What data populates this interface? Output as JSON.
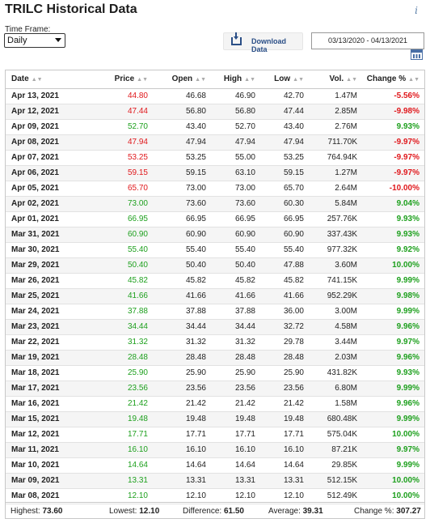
{
  "title": "TRILC Historical Data",
  "timeframe": {
    "label": "Time Frame:",
    "selected": "Daily"
  },
  "download": {
    "label": "Download Data"
  },
  "date_range": "03/13/2020 - 04/13/2021",
  "columns": [
    "Date",
    "Price",
    "Open",
    "High",
    "Low",
    "Vol.",
    "Change %"
  ],
  "colors": {
    "up": "#1ea01e",
    "down": "#e0181c",
    "accent": "#2a4e86"
  },
  "rows": [
    {
      "date": "Apr 13, 2021",
      "price": "44.80",
      "open": "46.68",
      "high": "46.90",
      "low": "42.70",
      "vol": "1.47M",
      "change": "-5.56%",
      "dir": "down"
    },
    {
      "date": "Apr 12, 2021",
      "price": "47.44",
      "open": "56.80",
      "high": "56.80",
      "low": "47.44",
      "vol": "2.85M",
      "change": "-9.98%",
      "dir": "down"
    },
    {
      "date": "Apr 09, 2021",
      "price": "52.70",
      "open": "43.40",
      "high": "52.70",
      "low": "43.40",
      "vol": "2.76M",
      "change": "9.93%",
      "dir": "up"
    },
    {
      "date": "Apr 08, 2021",
      "price": "47.94",
      "open": "47.94",
      "high": "47.94",
      "low": "47.94",
      "vol": "711.70K",
      "change": "-9.97%",
      "dir": "down"
    },
    {
      "date": "Apr 07, 2021",
      "price": "53.25",
      "open": "53.25",
      "high": "55.00",
      "low": "53.25",
      "vol": "764.94K",
      "change": "-9.97%",
      "dir": "down"
    },
    {
      "date": "Apr 06, 2021",
      "price": "59.15",
      "open": "59.15",
      "high": "63.10",
      "low": "59.15",
      "vol": "1.27M",
      "change": "-9.97%",
      "dir": "down"
    },
    {
      "date": "Apr 05, 2021",
      "price": "65.70",
      "open": "73.00",
      "high": "73.00",
      "low": "65.70",
      "vol": "2.64M",
      "change": "-10.00%",
      "dir": "down"
    },
    {
      "date": "Apr 02, 2021",
      "price": "73.00",
      "open": "73.60",
      "high": "73.60",
      "low": "60.30",
      "vol": "5.84M",
      "change": "9.04%",
      "dir": "up"
    },
    {
      "date": "Apr 01, 2021",
      "price": "66.95",
      "open": "66.95",
      "high": "66.95",
      "low": "66.95",
      "vol": "257.76K",
      "change": "9.93%",
      "dir": "up"
    },
    {
      "date": "Mar 31, 2021",
      "price": "60.90",
      "open": "60.90",
      "high": "60.90",
      "low": "60.90",
      "vol": "337.43K",
      "change": "9.93%",
      "dir": "up"
    },
    {
      "date": "Mar 30, 2021",
      "price": "55.40",
      "open": "55.40",
      "high": "55.40",
      "low": "55.40",
      "vol": "977.32K",
      "change": "9.92%",
      "dir": "up"
    },
    {
      "date": "Mar 29, 2021",
      "price": "50.40",
      "open": "50.40",
      "high": "50.40",
      "low": "47.88",
      "vol": "3.60M",
      "change": "10.00%",
      "dir": "up"
    },
    {
      "date": "Mar 26, 2021",
      "price": "45.82",
      "open": "45.82",
      "high": "45.82",
      "low": "45.82",
      "vol": "741.15K",
      "change": "9.99%",
      "dir": "up"
    },
    {
      "date": "Mar 25, 2021",
      "price": "41.66",
      "open": "41.66",
      "high": "41.66",
      "low": "41.66",
      "vol": "952.29K",
      "change": "9.98%",
      "dir": "up"
    },
    {
      "date": "Mar 24, 2021",
      "price": "37.88",
      "open": "37.88",
      "high": "37.88",
      "low": "36.00",
      "vol": "3.00M",
      "change": "9.99%",
      "dir": "up"
    },
    {
      "date": "Mar 23, 2021",
      "price": "34.44",
      "open": "34.44",
      "high": "34.44",
      "low": "32.72",
      "vol": "4.58M",
      "change": "9.96%",
      "dir": "up"
    },
    {
      "date": "Mar 22, 2021",
      "price": "31.32",
      "open": "31.32",
      "high": "31.32",
      "low": "29.78",
      "vol": "3.44M",
      "change": "9.97%",
      "dir": "up"
    },
    {
      "date": "Mar 19, 2021",
      "price": "28.48",
      "open": "28.48",
      "high": "28.48",
      "low": "28.48",
      "vol": "2.03M",
      "change": "9.96%",
      "dir": "up"
    },
    {
      "date": "Mar 18, 2021",
      "price": "25.90",
      "open": "25.90",
      "high": "25.90",
      "low": "25.90",
      "vol": "431.82K",
      "change": "9.93%",
      "dir": "up"
    },
    {
      "date": "Mar 17, 2021",
      "price": "23.56",
      "open": "23.56",
      "high": "23.56",
      "low": "23.56",
      "vol": "6.80M",
      "change": "9.99%",
      "dir": "up"
    },
    {
      "date": "Mar 16, 2021",
      "price": "21.42",
      "open": "21.42",
      "high": "21.42",
      "low": "21.42",
      "vol": "1.58M",
      "change": "9.96%",
      "dir": "up"
    },
    {
      "date": "Mar 15, 2021",
      "price": "19.48",
      "open": "19.48",
      "high": "19.48",
      "low": "19.48",
      "vol": "680.48K",
      "change": "9.99%",
      "dir": "up"
    },
    {
      "date": "Mar 12, 2021",
      "price": "17.71",
      "open": "17.71",
      "high": "17.71",
      "low": "17.71",
      "vol": "575.04K",
      "change": "10.00%",
      "dir": "up"
    },
    {
      "date": "Mar 11, 2021",
      "price": "16.10",
      "open": "16.10",
      "high": "16.10",
      "low": "16.10",
      "vol": "87.21K",
      "change": "9.97%",
      "dir": "up"
    },
    {
      "date": "Mar 10, 2021",
      "price": "14.64",
      "open": "14.64",
      "high": "14.64",
      "low": "14.64",
      "vol": "29.85K",
      "change": "9.99%",
      "dir": "up"
    },
    {
      "date": "Mar 09, 2021",
      "price": "13.31",
      "open": "13.31",
      "high": "13.31",
      "low": "13.31",
      "vol": "512.15K",
      "change": "10.00%",
      "dir": "up"
    },
    {
      "date": "Mar 08, 2021",
      "price": "12.10",
      "open": "12.10",
      "high": "12.10",
      "low": "12.10",
      "vol": "512.49K",
      "change": "10.00%",
      "dir": "up"
    }
  ],
  "summary": {
    "highest_label": "Highest:",
    "highest": "73.60",
    "lowest_label": "Lowest:",
    "lowest": "12.10",
    "difference_label": "Difference:",
    "difference": "61.50",
    "average_label": "Average:",
    "average": "39.31",
    "change_label": "Change %:",
    "change": "307.27"
  }
}
